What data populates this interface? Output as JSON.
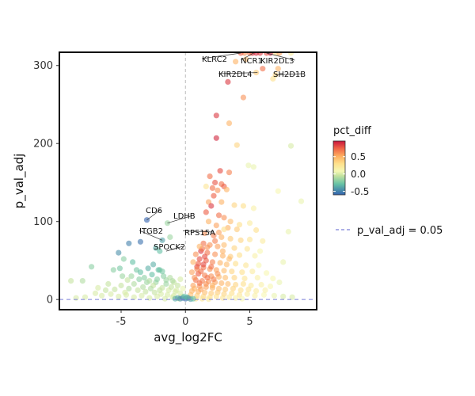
{
  "chart_data": {
    "type": "scatter",
    "title": "",
    "xlabel": "avg_log2FC",
    "ylabel": "p_val_adj",
    "xlim": [
      -9.8,
      10.2
    ],
    "ylim": [
      -13,
      317
    ],
    "x_ticks": [
      -5,
      0,
      5
    ],
    "y_ticks": [
      0,
      100,
      200,
      300
    ],
    "x_tick_labels": [
      "-5",
      "0",
      "5"
    ],
    "y_tick_labels": [
      "0",
      "100",
      "200",
      "300"
    ],
    "color_variable": "pct_diff",
    "color_range": [
      -0.6,
      0.95
    ],
    "colorbar_ticks": [
      0.5,
      0.0,
      -0.5
    ],
    "colorbar_tick_labels": [
      "0.5",
      "0.0",
      "-0.5"
    ],
    "threshold": {
      "name": "p_val_adj = 0.05",
      "y": 0.05
    },
    "vline_x": 0,
    "grid": false,
    "legend_position": "right",
    "points": [
      [
        5.2,
        316,
        0.88
      ],
      [
        5.5,
        316,
        0.9
      ],
      [
        5.8,
        316,
        0.85
      ],
      [
        6.3,
        316,
        0.8
      ],
      [
        6.6,
        316,
        0.92
      ],
      [
        7.0,
        316,
        0.3
      ],
      [
        5.0,
        316,
        0.7
      ],
      [
        4.6,
        316,
        0.6
      ],
      [
        4.3,
        316,
        0.75
      ],
      [
        7.3,
        316,
        0.55
      ],
      [
        8.2,
        316,
        0.2
      ],
      [
        3.9,
        305,
        0.5
      ],
      [
        4.7,
        308,
        0.45
      ],
      [
        3.3,
        279,
        0.85
      ],
      [
        6.0,
        296,
        0.7
      ],
      [
        5.5,
        291,
        0.4
      ],
      [
        7.0,
        288,
        0.35
      ],
      [
        4.5,
        259,
        0.6
      ],
      [
        6.8,
        283,
        0.3
      ],
      [
        7.2,
        296,
        0.5
      ],
      [
        2.4,
        236,
        0.85
      ],
      [
        3.4,
        226,
        0.5
      ],
      [
        2.4,
        207,
        0.9
      ],
      [
        4.0,
        198,
        0.35
      ],
      [
        8.2,
        197,
        0.0
      ],
      [
        4.9,
        172,
        0.05
      ],
      [
        5.3,
        170,
        0.05
      ],
      [
        2.7,
        165,
        0.8
      ],
      [
        3.4,
        163,
        0.65
      ],
      [
        1.9,
        158,
        0.7
      ],
      [
        2.3,
        150,
        0.78
      ],
      [
        2.8,
        148,
        0.7
      ],
      [
        3.0,
        145,
        0.75
      ],
      [
        2.1,
        143,
        0.7
      ],
      [
        1.6,
        145,
        0.25
      ],
      [
        2.5,
        140,
        0.6
      ],
      [
        3.2,
        141,
        0.5
      ],
      [
        7.2,
        139,
        0.1
      ],
      [
        2.2,
        133,
        0.75
      ],
      [
        1.8,
        125,
        0.55
      ],
      [
        2.8,
        125,
        0.5
      ],
      [
        9.0,
        126,
        0.05
      ],
      [
        3.8,
        121,
        0.35
      ],
      [
        4.5,
        120,
        0.3
      ],
      [
        5.3,
        117,
        0.15
      ],
      [
        2.0,
        120,
        0.85
      ],
      [
        1.6,
        112,
        0.75
      ],
      [
        2.6,
        108,
        0.7
      ],
      [
        3.0,
        105,
        0.6
      ],
      [
        3.5,
        100,
        0.45
      ],
      [
        4.2,
        96,
        0.3
      ],
      [
        5.0,
        98,
        0.2
      ],
      [
        1.8,
        100,
        0.5
      ],
      [
        2.4,
        95,
        0.55
      ],
      [
        3.3,
        92,
        0.5
      ],
      [
        4.0,
        90,
        0.4
      ],
      [
        5.5,
        89,
        0.3
      ],
      [
        8.0,
        87,
        0.05
      ],
      [
        1.5,
        85,
        0.6
      ],
      [
        2.2,
        82,
        0.65
      ],
      [
        2.8,
        80,
        0.5
      ],
      [
        3.5,
        78,
        0.4
      ],
      [
        4.3,
        76,
        0.35
      ],
      [
        5.0,
        77,
        0.25
      ],
      [
        6.0,
        75,
        0.2
      ],
      [
        1.4,
        72,
        0.7
      ],
      [
        1.9,
        70,
        0.6
      ],
      [
        2.5,
        68,
        0.55
      ],
      [
        3.0,
        70,
        0.45
      ],
      [
        3.8,
        66,
        0.35
      ],
      [
        4.8,
        65,
        0.25
      ],
      [
        5.8,
        62,
        0.1
      ],
      [
        1.2,
        62,
        0.85
      ],
      [
        1.7,
        60,
        0.7
      ],
      [
        2.3,
        58,
        0.6
      ],
      [
        2.9,
        56,
        0.5
      ],
      [
        3.5,
        55,
        0.4
      ],
      [
        4.2,
        57,
        0.3
      ],
      [
        5.4,
        56,
        0.15
      ],
      [
        1.1,
        52,
        0.8
      ],
      [
        1.6,
        50,
        0.75
      ],
      [
        2.1,
        48,
        0.65
      ],
      [
        2.7,
        47,
        0.5
      ],
      [
        3.2,
        45,
        0.45
      ],
      [
        3.9,
        46,
        0.3
      ],
      [
        4.7,
        44,
        0.25
      ],
      [
        5.7,
        44,
        0.1
      ],
      [
        7.6,
        48,
        0.05
      ],
      [
        0.9,
        42,
        0.8
      ],
      [
        1.4,
        41,
        0.7
      ],
      [
        1.9,
        39,
        0.6
      ],
      [
        2.4,
        38,
        0.55
      ],
      [
        3.0,
        37,
        0.45
      ],
      [
        3.6,
        36,
        0.35
      ],
      [
        4.4,
        35,
        0.3
      ],
      [
        5.2,
        36,
        0.2
      ],
      [
        6.3,
        34,
        0.1
      ],
      [
        1.0,
        33,
        0.75
      ],
      [
        1.5,
        31,
        0.65
      ],
      [
        2.0,
        30,
        0.6
      ],
      [
        2.6,
        29,
        0.5
      ],
      [
        3.1,
        28,
        0.45
      ],
      [
        3.8,
        28,
        0.35
      ],
      [
        4.6,
        27,
        0.25
      ],
      [
        5.6,
        28,
        0.15
      ],
      [
        6.8,
        27,
        0.1
      ],
      [
        7.3,
        22,
        0.05
      ],
      [
        0.8,
        25,
        0.7
      ],
      [
        1.3,
        24,
        0.65
      ],
      [
        1.8,
        23,
        0.6
      ],
      [
        2.3,
        22,
        0.55
      ],
      [
        2.8,
        21,
        0.5
      ],
      [
        3.3,
        20,
        0.45
      ],
      [
        3.9,
        19,
        0.35
      ],
      [
        4.5,
        20,
        0.3
      ],
      [
        5.1,
        18,
        0.2
      ],
      [
        5.9,
        19,
        0.15
      ],
      [
        6.6,
        17,
        0.1
      ],
      [
        0.6,
        18,
        0.55
      ],
      [
        1.1,
        17,
        0.6
      ],
      [
        1.6,
        16,
        0.55
      ],
      [
        2.1,
        15,
        0.5
      ],
      [
        2.6,
        14,
        0.45
      ],
      [
        3.1,
        13,
        0.4
      ],
      [
        3.7,
        14,
        0.35
      ],
      [
        4.3,
        12,
        0.3
      ],
      [
        4.9,
        13,
        0.25
      ],
      [
        5.5,
        11,
        0.2
      ],
      [
        6.2,
        12,
        0.15
      ],
      [
        0.5,
        11,
        0.5
      ],
      [
        1.0,
        10,
        0.5
      ],
      [
        1.5,
        9,
        0.45
      ],
      [
        2.0,
        8,
        0.4
      ],
      [
        2.5,
        9,
        0.4
      ],
      [
        3.0,
        7,
        0.35
      ],
      [
        3.6,
        8,
        0.3
      ],
      [
        4.2,
        6,
        0.25
      ],
      [
        4.8,
        7,
        0.2
      ],
      [
        5.4,
        5,
        0.15
      ],
      [
        6.1,
        6,
        0.1
      ],
      [
        6.9,
        5,
        0.05
      ],
      [
        7.6,
        4,
        0.0
      ],
      [
        8.3,
        3,
        0.0
      ],
      [
        0.4,
        6,
        0.45
      ],
      [
        0.9,
        5,
        0.4
      ],
      [
        1.4,
        4,
        0.35
      ],
      [
        1.9,
        3,
        0.3
      ],
      [
        2.4,
        4,
        0.3
      ],
      [
        2.9,
        2,
        0.25
      ],
      [
        3.4,
        3,
        0.2
      ],
      [
        3.9,
        2,
        0.15
      ],
      [
        4.4,
        1,
        0.1
      ],
      [
        0.3,
        2,
        0.35
      ],
      [
        0.8,
        1,
        0.3
      ],
      [
        1.3,
        1,
        0.25
      ],
      [
        1.8,
        0.5,
        0.2
      ],
      [
        0.7,
        28,
        0.6
      ],
      [
        1.2,
        36,
        0.7
      ],
      [
        0.5,
        35,
        0.55
      ],
      [
        1.0,
        46,
        0.75
      ],
      [
        1.5,
        55,
        0.8
      ],
      [
        0.8,
        58,
        0.6
      ],
      [
        0.6,
        48,
        0.5
      ],
      [
        1.3,
        65,
        0.7
      ],
      [
        1.7,
        67,
        0.6
      ],
      [
        2.3,
        75,
        0.65
      ],
      [
        2.9,
        62,
        0.5
      ],
      [
        3.4,
        52,
        0.45
      ],
      [
        1.1,
        68,
        0.5
      ],
      [
        2.6,
        86,
        0.55
      ],
      [
        3.0,
        90,
        0.3
      ],
      [
        0.9,
        39,
        0.65
      ],
      [
        1.4,
        45,
        0.8
      ],
      [
        2.0,
        42,
        0.7
      ],
      [
        2.5,
        33,
        0.6
      ],
      [
        1.7,
        28,
        0.7
      ],
      [
        2.2,
        26,
        0.65
      ],
      [
        1.1,
        21,
        0.7
      ],
      [
        1.6,
        20,
        0.6
      ],
      [
        2.1,
        18,
        0.5
      ],
      [
        0.7,
        14,
        0.5
      ],
      [
        1.2,
        13,
        0.55
      ],
      [
        -8.9,
        24,
        -0.05
      ],
      [
        -8.0,
        24,
        -0.1
      ],
      [
        -7.3,
        42,
        -0.2
      ],
      [
        -6.2,
        12,
        -0.05
      ],
      [
        -5.6,
        38,
        -0.2
      ],
      [
        -5.1,
        40,
        -0.25
      ],
      [
        -4.5,
        25,
        -0.05
      ],
      [
        -4.2,
        30,
        -0.15
      ],
      [
        -3.8,
        38,
        -0.25
      ],
      [
        -3.5,
        35,
        -0.3
      ],
      [
        -3.2,
        28,
        -0.2
      ],
      [
        -2.9,
        40,
        -0.35
      ],
      [
        -2.6,
        32,
        -0.3
      ],
      [
        -2.3,
        22,
        -0.15
      ],
      [
        -2.0,
        38,
        -0.25
      ],
      [
        -1.7,
        30,
        -0.2
      ],
      [
        -1.5,
        25,
        -0.15
      ],
      [
        -1.2,
        28,
        -0.1
      ],
      [
        -0.9,
        22,
        -0.05
      ],
      [
        -0.6,
        18,
        -0.05
      ],
      [
        -5.0,
        18,
        -0.05
      ],
      [
        -4.0,
        20,
        -0.1
      ],
      [
        -3.0,
        22,
        -0.15
      ],
      [
        -2.5,
        18,
        -0.05
      ],
      [
        -1.8,
        15,
        -0.05
      ],
      [
        -1.3,
        12,
        0.0
      ],
      [
        -0.8,
        10,
        0.0
      ],
      [
        -0.4,
        8,
        0.0
      ],
      [
        -7.0,
        8,
        0.0
      ],
      [
        -6.5,
        5,
        0.0
      ],
      [
        -5.8,
        7,
        0.0
      ],
      [
        -5.2,
        4,
        0.0
      ],
      [
        -4.6,
        6,
        0.0
      ],
      [
        -4.0,
        3,
        0.0
      ],
      [
        -3.4,
        5,
        0.0
      ],
      [
        -2.8,
        2,
        0.0
      ],
      [
        -2.2,
        4,
        0.0
      ],
      [
        -1.6,
        1,
        0.0
      ],
      [
        -1.0,
        3,
        0.0
      ],
      [
        -0.5,
        1,
        0.0
      ],
      [
        -8.5,
        2,
        0.0
      ],
      [
        -7.8,
        3,
        0.0
      ],
      [
        -3.7,
        12,
        -0.05
      ],
      [
        -3.1,
        10,
        -0.05
      ],
      [
        -2.4,
        9,
        -0.05
      ],
      [
        -1.9,
        7,
        0.0
      ],
      [
        -1.4,
        6,
        0.0
      ],
      [
        -0.9,
        5,
        0.0
      ],
      [
        -0.3,
        4,
        0.0
      ],
      [
        -4.4,
        14,
        -0.1
      ],
      [
        -5.5,
        13,
        -0.05
      ],
      [
        -6.0,
        20,
        -0.05
      ],
      [
        -6.8,
        15,
        0.0
      ],
      [
        -4.7,
        9,
        0.0
      ],
      [
        -2.0,
        12,
        -0.05
      ],
      [
        -1.1,
        16,
        -0.05
      ],
      [
        -0.7,
        12,
        0.0
      ],
      [
        -0.2,
        14,
        0.05
      ],
      [
        -3.3,
        16,
        -0.1
      ],
      [
        -2.7,
        14,
        -0.1
      ],
      [
        -1.5,
        20,
        -0.15
      ],
      [
        -1.0,
        24,
        -0.1
      ],
      [
        -0.4,
        26,
        0.0
      ],
      [
        -2.2,
        26,
        -0.2
      ],
      [
        -3.6,
        26,
        -0.2
      ],
      [
        -4.9,
        30,
        -0.15
      ],
      [
        -2.8,
        24,
        -0.1
      ],
      [
        -3.0,
        102,
        -0.6
      ],
      [
        -3.5,
        74,
        -0.55
      ],
      [
        -4.4,
        72,
        -0.5
      ],
      [
        -5.2,
        60,
        -0.45
      ],
      [
        -1.8,
        76,
        -0.4
      ],
      [
        -2.3,
        66,
        -0.35
      ],
      [
        -2.0,
        62,
        -0.3
      ],
      [
        -2.1,
        38,
        -0.3
      ],
      [
        -1.8,
        36,
        -0.25
      ],
      [
        -1.4,
        98,
        -0.15
      ],
      [
        -4.8,
        52,
        -0.2
      ],
      [
        -4.1,
        48,
        -0.3
      ],
      [
        -1.2,
        80,
        -0.15
      ],
      [
        -2.5,
        45,
        -0.35
      ],
      [
        -0.6,
        2,
        -0.4
      ],
      [
        -0.4,
        1,
        -0.45
      ],
      [
        -0.2,
        2,
        -0.5
      ],
      [
        0.0,
        1,
        -0.55
      ],
      [
        0.2,
        2,
        -0.45
      ],
      [
        0.4,
        0.5,
        -0.4
      ],
      [
        0.6,
        1,
        -0.3
      ],
      [
        -0.8,
        1,
        -0.35
      ],
      [
        0.1,
        3,
        -0.35
      ],
      [
        -0.1,
        4,
        -0.3
      ]
    ],
    "annotations": [
      {
        "label": "KLRC2",
        "x": 4.3,
        "y": 316
      },
      {
        "label": "NCR1",
        "x": 5.3,
        "y": 316
      },
      {
        "label": "KIR2DL3",
        "x": 6.3,
        "y": 316
      },
      {
        "label": "KIR2DL4",
        "x": 5.6,
        "y": 291
      },
      {
        "label": "SH2D1B",
        "x": 7.0,
        "y": 288
      },
      {
        "label": "CD6",
        "x": -3.0,
        "y": 102
      },
      {
        "label": "LDHB",
        "x": -1.4,
        "y": 98
      },
      {
        "label": "ITGB2",
        "x": -1.8,
        "y": 76
      },
      {
        "label": "RPS15A",
        "x": -0.2,
        "y": 88
      },
      {
        "label": "SPOCK2",
        "x": -1.5,
        "y": 62
      }
    ]
  }
}
